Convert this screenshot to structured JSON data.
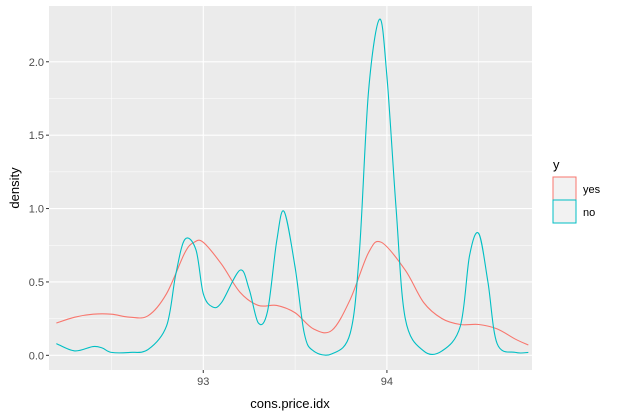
{
  "chart_data": {
    "type": "line",
    "xlabel": "cons.price.idx",
    "ylabel": "density",
    "xlim": [
      92.16,
      94.79
    ],
    "ylim": [
      -0.1,
      2.38
    ],
    "x_ticks": [
      93,
      94
    ],
    "x_tick_labels": [
      "93",
      "94"
    ],
    "y_ticks": [
      0.0,
      0.5,
      1.0,
      1.5,
      2.0
    ],
    "y_tick_labels": [
      "0.0",
      "0.5",
      "1.0",
      "1.5",
      "2.0"
    ],
    "grid": true,
    "legend": {
      "title": "y",
      "position": "right"
    },
    "series": [
      {
        "name": "yes",
        "color": "#F8766D",
        "points": [
          [
            92.2,
            0.22
          ],
          [
            92.3,
            0.26
          ],
          [
            92.4,
            0.28
          ],
          [
            92.5,
            0.28
          ],
          [
            92.6,
            0.26
          ],
          [
            92.7,
            0.27
          ],
          [
            92.8,
            0.42
          ],
          [
            92.9,
            0.7
          ],
          [
            92.95,
            0.77
          ],
          [
            93.0,
            0.77
          ],
          [
            93.1,
            0.62
          ],
          [
            93.2,
            0.43
          ],
          [
            93.3,
            0.34
          ],
          [
            93.4,
            0.34
          ],
          [
            93.5,
            0.29
          ],
          [
            93.6,
            0.18
          ],
          [
            93.7,
            0.17
          ],
          [
            93.8,
            0.38
          ],
          [
            93.9,
            0.7
          ],
          [
            93.97,
            0.77
          ],
          [
            94.1,
            0.58
          ],
          [
            94.2,
            0.36
          ],
          [
            94.3,
            0.25
          ],
          [
            94.4,
            0.21
          ],
          [
            94.5,
            0.21
          ],
          [
            94.6,
            0.18
          ],
          [
            94.7,
            0.11
          ],
          [
            94.77,
            0.07
          ]
        ]
      },
      {
        "name": "no",
        "color": "#00BFC4",
        "points": [
          [
            92.2,
            0.08
          ],
          [
            92.3,
            0.03
          ],
          [
            92.4,
            0.06
          ],
          [
            92.45,
            0.05
          ],
          [
            92.5,
            0.02
          ],
          [
            92.6,
            0.02
          ],
          [
            92.7,
            0.04
          ],
          [
            92.8,
            0.2
          ],
          [
            92.85,
            0.55
          ],
          [
            92.9,
            0.79
          ],
          [
            92.96,
            0.72
          ],
          [
            93.0,
            0.42
          ],
          [
            93.05,
            0.33
          ],
          [
            93.1,
            0.36
          ],
          [
            93.2,
            0.58
          ],
          [
            93.25,
            0.45
          ],
          [
            93.3,
            0.22
          ],
          [
            93.35,
            0.3
          ],
          [
            93.4,
            0.78
          ],
          [
            93.44,
            0.98
          ],
          [
            93.5,
            0.6
          ],
          [
            93.55,
            0.15
          ],
          [
            93.6,
            0.03
          ],
          [
            93.7,
            0.01
          ],
          [
            93.8,
            0.15
          ],
          [
            93.85,
            0.7
          ],
          [
            93.9,
            1.8
          ],
          [
            93.96,
            2.29
          ],
          [
            94.0,
            1.9
          ],
          [
            94.05,
            1.0
          ],
          [
            94.1,
            0.25
          ],
          [
            94.2,
            0.03
          ],
          [
            94.3,
            0.03
          ],
          [
            94.4,
            0.2
          ],
          [
            94.45,
            0.68
          ],
          [
            94.5,
            0.83
          ],
          [
            94.55,
            0.5
          ],
          [
            94.6,
            0.08
          ],
          [
            94.7,
            0.02
          ],
          [
            94.77,
            0.02
          ]
        ]
      }
    ]
  }
}
